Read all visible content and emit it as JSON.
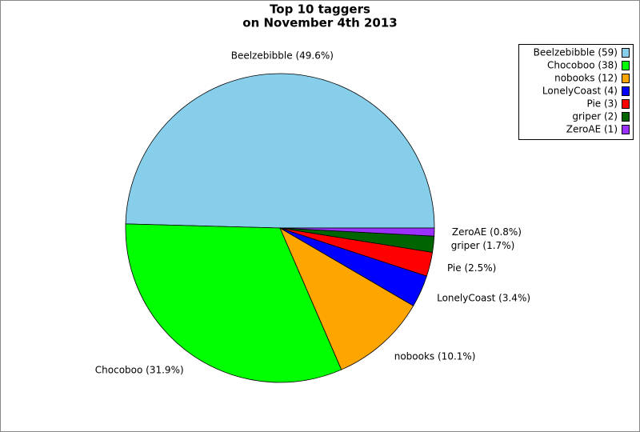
{
  "chart_data": {
    "type": "pie",
    "title": "Top 10 taggers",
    "subtitle": "on November 4th 2013",
    "categories": [
      "Beelzebibble",
      "Chocoboo",
      "nobooks",
      "LonelyCoast",
      "Pie",
      "griper",
      "ZeroAE"
    ],
    "values": [
      59,
      38,
      12,
      4,
      3,
      2,
      1
    ],
    "value_labels": [
      "Beelzebibble (49.6%)",
      "Chocoboo (31.9%)",
      "nobooks (10.1%)",
      "LonelyCoast (3.4%)",
      "Pie (2.5%)",
      "griper (1.7%)",
      "ZeroAE (0.8%)"
    ],
    "legend_labels": [
      "Beelzebibble (59)",
      "Chocoboo (38)",
      "nobooks (12)",
      "LonelyCoast (4)",
      "Pie (3)",
      "griper (2)",
      "ZeroAE (1)"
    ],
    "colors": [
      "#87ceeb",
      "#00ff00",
      "#ffa500",
      "#0000ff",
      "#ff0000",
      "#006400",
      "#9b30ff"
    ],
    "legend": "top-right"
  }
}
